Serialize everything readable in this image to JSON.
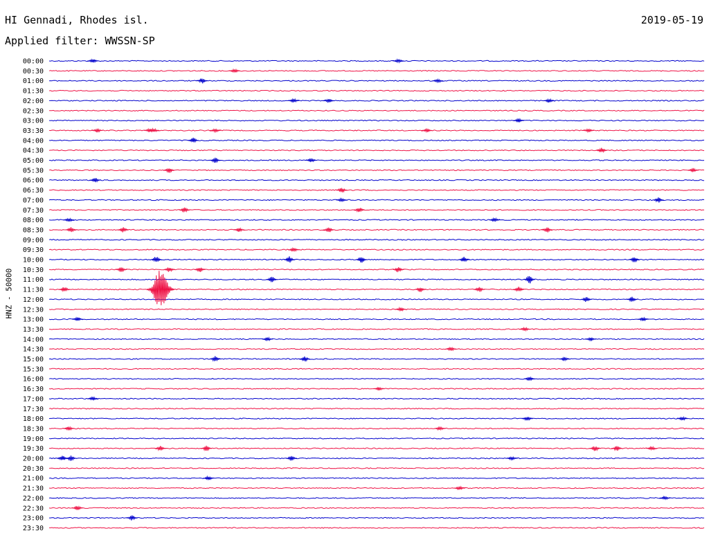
{
  "header": {
    "station": "HI Gennadi, Rhodes isl.",
    "date": "2019-05-19",
    "filter": "Applied filter: WWSSN-SP"
  },
  "chart_data": {
    "type": "line",
    "title": "HI Gennadi, Rhodes isl.",
    "ylabel": "HNZ - 50000",
    "colors": [
      "#0000cc",
      "#ee1144"
    ],
    "categories": [
      "00:00",
      "00:30",
      "01:00",
      "01:30",
      "02:00",
      "02:30",
      "03:00",
      "03:30",
      "04:00",
      "04:30",
      "05:00",
      "05:30",
      "06:00",
      "06:30",
      "07:00",
      "07:30",
      "08:00",
      "08:30",
      "09:00",
      "09:30",
      "10:00",
      "10:30",
      "11:00",
      "11:30",
      "12:00",
      "12:30",
      "13:00",
      "13:30",
      "14:00",
      "14:30",
      "15:00",
      "15:30",
      "16:00",
      "16:30",
      "17:00",
      "17:30",
      "18:00",
      "18:30",
      "19:00",
      "19:30",
      "20:00",
      "20:30",
      "21:00",
      "21:30",
      "22:00",
      "22:30",
      "23:00",
      "23:30"
    ],
    "x_range_minutes": [
      0,
      30
    ],
    "events": [
      {
        "row": "00:00",
        "minute": 2.0,
        "amp": 3
      },
      {
        "row": "00:00",
        "minute": 16.0,
        "amp": 3
      },
      {
        "row": "00:30",
        "minute": 8.5,
        "amp": 3
      },
      {
        "row": "01:00",
        "minute": 7.0,
        "amp": 4
      },
      {
        "row": "01:00",
        "minute": 17.8,
        "amp": 3
      },
      {
        "row": "02:00",
        "minute": 11.2,
        "amp": 3
      },
      {
        "row": "02:00",
        "minute": 12.8,
        "amp": 3
      },
      {
        "row": "02:00",
        "minute": 22.9,
        "amp": 3
      },
      {
        "row": "03:00",
        "minute": 21.5,
        "amp": 3
      },
      {
        "row": "03:30",
        "minute": 2.2,
        "amp": 3
      },
      {
        "row": "03:30",
        "minute": 4.6,
        "amp": 3
      },
      {
        "row": "03:30",
        "minute": 4.8,
        "amp": 3
      },
      {
        "row": "03:30",
        "minute": 7.6,
        "amp": 3
      },
      {
        "row": "03:30",
        "minute": 17.3,
        "amp": 3
      },
      {
        "row": "03:30",
        "minute": 24.7,
        "amp": 3
      },
      {
        "row": "04:00",
        "minute": 6.6,
        "amp": 4
      },
      {
        "row": "04:30",
        "minute": 25.3,
        "amp": 4
      },
      {
        "row": "05:00",
        "minute": 7.6,
        "amp": 4
      },
      {
        "row": "05:00",
        "minute": 12.0,
        "amp": 3
      },
      {
        "row": "05:30",
        "minute": 5.5,
        "amp": 4
      },
      {
        "row": "05:30",
        "minute": 29.5,
        "amp": 3
      },
      {
        "row": "06:00",
        "minute": 2.1,
        "amp": 4
      },
      {
        "row": "06:30",
        "minute": 13.4,
        "amp": 4
      },
      {
        "row": "07:00",
        "minute": 13.4,
        "amp": 3
      },
      {
        "row": "07:00",
        "minute": 27.9,
        "amp": 4
      },
      {
        "row": "07:30",
        "minute": 6.2,
        "amp": 4
      },
      {
        "row": "07:30",
        "minute": 14.2,
        "amp": 4
      },
      {
        "row": "08:00",
        "minute": 0.9,
        "amp": 3
      },
      {
        "row": "08:00",
        "minute": 20.4,
        "amp": 3
      },
      {
        "row": "08:30",
        "minute": 1.0,
        "amp": 4
      },
      {
        "row": "08:30",
        "minute": 3.4,
        "amp": 4
      },
      {
        "row": "08:30",
        "minute": 8.7,
        "amp": 3
      },
      {
        "row": "08:30",
        "minute": 12.8,
        "amp": 4
      },
      {
        "row": "08:30",
        "minute": 22.8,
        "amp": 4
      },
      {
        "row": "09:30",
        "minute": 11.2,
        "amp": 3
      },
      {
        "row": "10:00",
        "minute": 4.9,
        "amp": 5
      },
      {
        "row": "10:00",
        "minute": 11.0,
        "amp": 5
      },
      {
        "row": "10:00",
        "minute": 14.3,
        "amp": 5
      },
      {
        "row": "10:00",
        "minute": 19.0,
        "amp": 4
      },
      {
        "row": "10:00",
        "minute": 26.8,
        "amp": 4
      },
      {
        "row": "10:30",
        "minute": 3.3,
        "amp": 4
      },
      {
        "row": "10:30",
        "minute": 5.5,
        "amp": 4
      },
      {
        "row": "10:30",
        "minute": 6.9,
        "amp": 4
      },
      {
        "row": "10:30",
        "minute": 16.0,
        "amp": 4
      },
      {
        "row": "11:00",
        "minute": 10.2,
        "amp": 4
      },
      {
        "row": "11:00",
        "minute": 22.0,
        "amp": 6
      },
      {
        "row": "11:30",
        "minute": 0.7,
        "amp": 4
      },
      {
        "row": "11:30",
        "minute": 5.1,
        "amp": 30
      },
      {
        "row": "11:30",
        "minute": 17.0,
        "amp": 4
      },
      {
        "row": "11:30",
        "minute": 19.7,
        "amp": 4
      },
      {
        "row": "11:30",
        "minute": 21.5,
        "amp": 4
      },
      {
        "row": "12:00",
        "minute": 24.6,
        "amp": 4
      },
      {
        "row": "12:00",
        "minute": 26.7,
        "amp": 4
      },
      {
        "row": "12:30",
        "minute": 16.1,
        "amp": 3
      },
      {
        "row": "13:00",
        "minute": 1.3,
        "amp": 3
      },
      {
        "row": "13:00",
        "minute": 27.2,
        "amp": 3
      },
      {
        "row": "13:30",
        "minute": 21.8,
        "amp": 3
      },
      {
        "row": "14:00",
        "minute": 10.0,
        "amp": 3
      },
      {
        "row": "14:00",
        "minute": 24.8,
        "amp": 3
      },
      {
        "row": "14:30",
        "minute": 18.4,
        "amp": 3
      },
      {
        "row": "15:00",
        "minute": 7.6,
        "amp": 4
      },
      {
        "row": "15:00",
        "minute": 11.7,
        "amp": 4
      },
      {
        "row": "15:00",
        "minute": 23.6,
        "amp": 3
      },
      {
        "row": "16:00",
        "minute": 22.0,
        "amp": 3
      },
      {
        "row": "16:30",
        "minute": 15.1,
        "amp": 3
      },
      {
        "row": "17:00",
        "minute": 2.0,
        "amp": 3
      },
      {
        "row": "18:00",
        "minute": 21.9,
        "amp": 4
      },
      {
        "row": "18:00",
        "minute": 29.0,
        "amp": 3
      },
      {
        "row": "18:30",
        "minute": 0.9,
        "amp": 3
      },
      {
        "row": "18:30",
        "minute": 17.9,
        "amp": 3
      },
      {
        "row": "19:30",
        "minute": 5.1,
        "amp": 4
      },
      {
        "row": "19:30",
        "minute": 7.2,
        "amp": 4
      },
      {
        "row": "19:30",
        "minute": 25.0,
        "amp": 4
      },
      {
        "row": "19:30",
        "minute": 26.0,
        "amp": 4
      },
      {
        "row": "19:30",
        "minute": 27.6,
        "amp": 3
      },
      {
        "row": "20:00",
        "minute": 0.6,
        "amp": 4
      },
      {
        "row": "20:00",
        "minute": 1.0,
        "amp": 4
      },
      {
        "row": "20:00",
        "minute": 11.1,
        "amp": 4
      },
      {
        "row": "20:00",
        "minute": 21.2,
        "amp": 3
      },
      {
        "row": "21:00",
        "minute": 7.3,
        "amp": 3
      },
      {
        "row": "21:30",
        "minute": 18.8,
        "amp": 3
      },
      {
        "row": "22:00",
        "minute": 28.2,
        "amp": 3
      },
      {
        "row": "22:30",
        "minute": 1.3,
        "amp": 4
      },
      {
        "row": "23:00",
        "minute": 3.8,
        "amp": 4
      }
    ]
  }
}
